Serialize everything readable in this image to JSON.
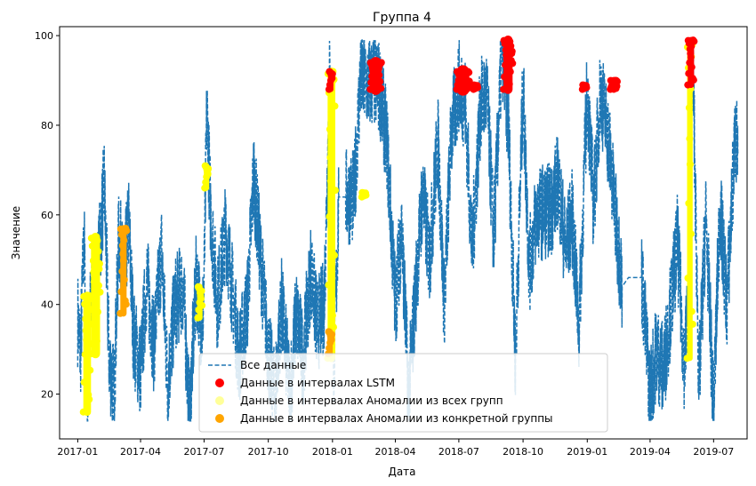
{
  "chart_data": {
    "type": "line",
    "title": "Группа 4",
    "xlabel": "Дата",
    "ylabel": "Значение",
    "xlim": [
      "2016-12-06",
      "2019-08-18"
    ],
    "ylim": [
      10,
      102
    ],
    "x_ticks": [
      "2017-01",
      "2017-04",
      "2017-07",
      "2017-10",
      "2018-01",
      "2018-04",
      "2018-07",
      "2018-10",
      "2019-01",
      "2019-04",
      "2019-07"
    ],
    "y_ticks": [
      20,
      40,
      60,
      80,
      100
    ],
    "legend_position": "lower center",
    "colors": {
      "all_data": "#1f77b4",
      "lstm": "#ff0000",
      "all_groups": "#ffff00",
      "specific_group": "#ffa500"
    },
    "series": [
      {
        "name": "Все данные",
        "style": "dashed-line",
        "x": [
          "2017-01-01",
          "2017-01-05",
          "2017-01-10",
          "2017-01-15",
          "2017-01-20",
          "2017-01-25",
          "2017-02-01",
          "2017-02-08",
          "2017-02-15",
          "2017-02-22",
          "2017-03-01",
          "2017-03-08",
          "2017-03-15",
          "2017-03-22",
          "2017-04-01",
          "2017-04-10",
          "2017-04-20",
          "2017-05-01",
          "2017-05-10",
          "2017-05-20",
          "2017-06-01",
          "2017-06-10",
          "2017-06-20",
          "2017-06-28",
          "2017-07-01",
          "2017-07-05",
          "2017-07-10",
          "2017-07-20",
          "2017-08-01",
          "2017-08-10",
          "2017-08-20",
          "2017-09-01",
          "2017-09-10",
          "2017-09-20",
          "2017-10-01",
          "2017-10-10",
          "2017-10-20",
          "2017-11-01",
          "2017-11-10",
          "2017-11-20",
          "2017-12-01",
          "2017-12-10",
          "2017-12-20",
          "2017-12-28",
          "2018-01-03",
          "2018-01-10",
          "2018-01-20",
          "2018-02-01",
          "2018-02-10",
          "2018-02-20",
          "2018-03-01",
          "2018-03-10",
          "2018-03-20",
          "2018-04-01",
          "2018-04-10",
          "2018-04-20",
          "2018-05-01",
          "2018-05-10",
          "2018-05-20",
          "2018-06-01",
          "2018-06-10",
          "2018-06-20",
          "2018-07-01",
          "2018-07-10",
          "2018-07-20",
          "2018-08-01",
          "2018-08-10",
          "2018-08-20",
          "2018-09-01",
          "2018-09-10",
          "2018-09-20",
          "2018-10-01",
          "2018-10-10",
          "2018-10-20",
          "2018-11-01",
          "2018-11-10",
          "2018-11-20",
          "2018-12-01",
          "2018-12-10",
          "2018-12-20",
          "2019-01-01",
          "2019-01-10",
          "2019-01-20",
          "2019-02-01",
          "2019-02-10",
          "2019-02-20",
          "2019-03-01",
          "2019-03-10",
          "2019-03-20",
          "2019-04-01",
          "2019-04-10",
          "2019-04-20",
          "2019-05-01",
          "2019-05-10",
          "2019-05-20",
          "2019-05-28",
          "2019-06-01",
          "2019-06-10",
          "2019-06-20",
          "2019-07-01",
          "2019-07-10",
          "2019-07-20",
          "2019-08-01",
          "2019-08-05"
        ],
        "y": [
          37,
          29,
          55,
          16,
          43,
          38,
          52,
          67,
          28,
          20,
          56,
          46,
          58,
          33,
          25,
          46,
          31,
          52,
          22,
          40,
          44,
          15,
          46,
          34,
          44,
          84,
          62,
          40,
          57,
          44,
          28,
          40,
          69,
          50,
          30,
          19,
          40,
          20,
          38,
          28,
          48,
          35,
          40,
          91,
          25,
          64,
          64,
          64,
          91,
          89,
          90,
          88,
          76,
          40,
          57,
          20,
          45,
          65,
          50,
          77,
          40,
          78,
          89,
          85,
          52,
          84,
          87,
          55,
          98,
          80,
          28,
          88,
          48,
          60,
          61,
          61,
          68,
          52,
          60,
          35,
          88,
          62,
          88,
          76,
          60,
          44,
          46,
          46,
          46,
          20,
          30,
          25,
          40,
          54,
          27,
          44,
          97,
          22,
          60,
          16,
          62,
          40,
          78,
          74
        ]
      },
      {
        "name": "Данные в интервалах LSTM",
        "style": "markers",
        "intervals": [
          {
            "start": "2017-12-27",
            "end": "2018-01-01",
            "y_min": 88,
            "y_max": 92
          },
          {
            "start": "2018-02-24",
            "end": "2018-03-12",
            "y_min": 88,
            "y_max": 94
          },
          {
            "start": "2018-06-28",
            "end": "2018-07-16",
            "y_min": 88,
            "y_max": 92
          },
          {
            "start": "2018-07-22",
            "end": "2018-07-28",
            "y_min": 88,
            "y_max": 89
          },
          {
            "start": "2018-09-03",
            "end": "2018-09-16",
            "y_min": 88,
            "y_max": 99
          },
          {
            "start": "2018-12-25",
            "end": "2018-12-31",
            "y_min": 88,
            "y_max": 89
          },
          {
            "start": "2019-02-03",
            "end": "2019-02-13",
            "y_min": 88,
            "y_max": 90
          },
          {
            "start": "2019-05-25",
            "end": "2019-06-03",
            "y_min": 89,
            "y_max": 99
          }
        ]
      },
      {
        "name": "Данные в интервалах Аномалии из всех групп",
        "style": "markers",
        "intervals": [
          {
            "start": "2017-01-09",
            "end": "2017-01-20",
            "y_min": 16,
            "y_max": 42
          },
          {
            "start": "2017-01-20",
            "end": "2017-02-02",
            "y_min": 29,
            "y_max": 55
          },
          {
            "start": "2017-06-22",
            "end": "2017-06-28",
            "y_min": 37,
            "y_max": 44
          },
          {
            "start": "2017-07-02",
            "end": "2017-07-07",
            "y_min": 66,
            "y_max": 71
          },
          {
            "start": "2017-12-25",
            "end": "2018-01-05",
            "y_min": 28,
            "y_max": 92
          },
          {
            "start": "2018-02-12",
            "end": "2018-02-18",
            "y_min": 64,
            "y_max": 65
          },
          {
            "start": "2019-05-24",
            "end": "2019-06-01",
            "y_min": 28,
            "y_max": 98
          }
        ]
      },
      {
        "name": "Данные в интервалах Аномалии из конкретной группы",
        "style": "markers",
        "intervals": [
          {
            "start": "2017-03-03",
            "end": "2017-03-12",
            "y_min": 38,
            "y_max": 57
          },
          {
            "start": "2017-12-26",
            "end": "2017-12-31",
            "y_min": 29,
            "y_max": 34
          }
        ]
      }
    ]
  }
}
